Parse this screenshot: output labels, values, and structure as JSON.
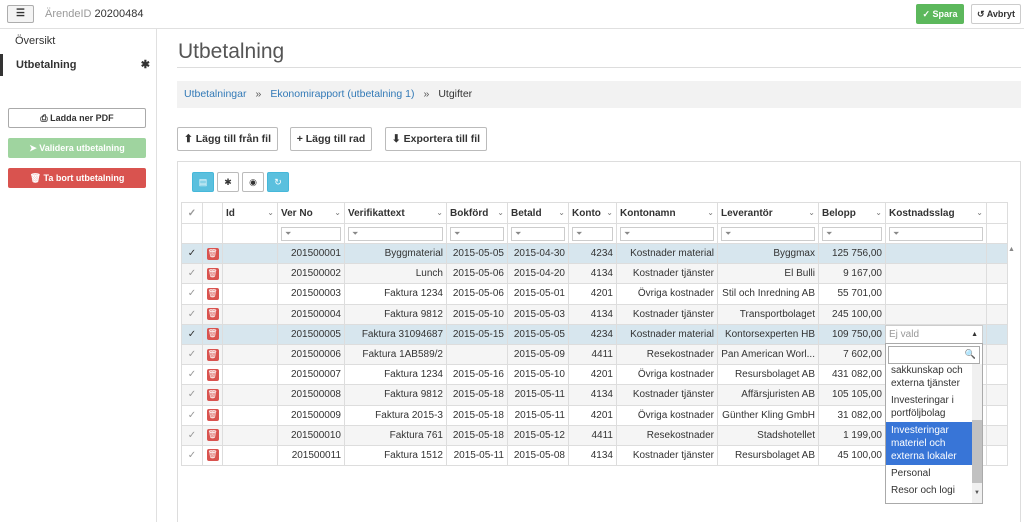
{
  "topbar": {
    "menu_icon": "list-collapse-icon",
    "case_label": "ÄrendeID",
    "case_id": "20200484",
    "save_label": "Spara",
    "cancel_label": "Avbryt"
  },
  "sidebar": {
    "items": [
      {
        "label": "Översikt"
      },
      {
        "label": "Utbetalning",
        "marker": "✱"
      }
    ],
    "download_pdf": "Ladda ner PDF",
    "validate": "Validera utbetalning",
    "delete": "Ta bort utbetalning"
  },
  "page": {
    "title": "Utbetalning",
    "breadcrumb": [
      "Utbetalningar",
      "Ekonomirapport (utbetalning 1)",
      "Utgifter"
    ]
  },
  "toolbar": {
    "add_from_file": "Lägg till från fil",
    "add_row": "Lägg till rad",
    "export": "Exportera till fil"
  },
  "grid": {
    "columns": [
      "Id",
      "Ver No",
      "Verifikattext",
      "Bokförd",
      "Betald",
      "Konto",
      "Kontonamn",
      "Leverantör",
      "Belopp",
      "Kostnadsslag"
    ],
    "rows": [
      {
        "id": "",
        "ver_no": "201500001",
        "text": "Byggmaterial",
        "bokford": "2015-05-05",
        "betald": "2015-04-30",
        "konto": "4234",
        "kontonamn": "Kostnader material",
        "leverantor": "Byggmax",
        "belopp": "125 756,00",
        "kostnadsslag": "",
        "checked": true
      },
      {
        "id": "",
        "ver_no": "201500002",
        "text": "Lunch",
        "bokford": "2015-05-06",
        "betald": "2015-04-20",
        "konto": "4134",
        "kontonamn": "Kostnader tjänster",
        "leverantor": "El Bulli",
        "belopp": "9 167,00",
        "kostnadsslag": "",
        "checked": false
      },
      {
        "id": "",
        "ver_no": "201500003",
        "text": "Faktura 1234",
        "bokford": "2015-05-06",
        "betald": "2015-05-01",
        "konto": "4201",
        "kontonamn": "Övriga kostnader",
        "leverantor": "Stil och Inredning AB",
        "belopp": "55 701,00",
        "kostnadsslag": "",
        "checked": false
      },
      {
        "id": "",
        "ver_no": "201500004",
        "text": "Faktura 9812",
        "bokford": "2015-05-10",
        "betald": "2015-05-03",
        "konto": "4134",
        "kontonamn": "Kostnader tjänster",
        "leverantor": "Transportbolaget",
        "belopp": "245 100,00",
        "kostnadsslag": "",
        "checked": false
      },
      {
        "id": "",
        "ver_no": "201500005",
        "text": "Faktura 31094687",
        "bokford": "2015-05-15",
        "betald": "2015-05-05",
        "konto": "4234",
        "kontonamn": "Kostnader material",
        "leverantor": "Kontorsexperten HB",
        "belopp": "109 750,00",
        "kostnadsslag": "",
        "checked": true
      },
      {
        "id": "",
        "ver_no": "201500006",
        "text": "Faktura 1AB589/2",
        "bokford": "",
        "betald": "2015-05-09",
        "konto": "4411",
        "kontonamn": "Resekostnader",
        "leverantor": "Pan American Worl...",
        "belopp": "7 602,00",
        "kostnadsslag": "",
        "checked": false
      },
      {
        "id": "",
        "ver_no": "201500007",
        "text": "Faktura 1234",
        "bokford": "2015-05-16",
        "betald": "2015-05-10",
        "konto": "4201",
        "kontonamn": "Övriga kostnader",
        "leverantor": "Resursbolaget AB",
        "belopp": "431 082,00",
        "kostnadsslag": "",
        "checked": false
      },
      {
        "id": "",
        "ver_no": "201500008",
        "text": "Faktura 9812",
        "bokford": "2015-05-18",
        "betald": "2015-05-11",
        "konto": "4134",
        "kontonamn": "Kostnader tjänster",
        "leverantor": "Affärsjuristen AB",
        "belopp": "105 105,00",
        "kostnadsslag": "",
        "checked": false
      },
      {
        "id": "",
        "ver_no": "201500009",
        "text": "Faktura 2015-3",
        "bokford": "2015-05-18",
        "betald": "2015-05-11",
        "konto": "4201",
        "kontonamn": "Övriga kostnader",
        "leverantor": "Günther Kling GmbH",
        "belopp": "31 082,00",
        "kostnadsslag": "",
        "checked": false
      },
      {
        "id": "",
        "ver_no": "201500010",
        "text": "Faktura 761",
        "bokford": "2015-05-18",
        "betald": "2015-05-12",
        "konto": "4411",
        "kontonamn": "Resekostnader",
        "leverantor": "Stadshotellet",
        "belopp": "1 199,00",
        "kostnadsslag": "",
        "checked": false
      },
      {
        "id": "",
        "ver_no": "201500011",
        "text": "Faktura 1512",
        "bokford": "2015-05-11",
        "betald": "2015-05-08",
        "konto": "4134",
        "kontonamn": "Kostnader tjänster",
        "leverantor": "Resursbolaget AB",
        "belopp": "45 100,00",
        "kostnadsslag": "",
        "checked": false
      }
    ]
  },
  "dropdown": {
    "selected": "Ej vald",
    "options": [
      "sakkunskap och externa tjänster",
      "Investeringar i portföljbolag",
      "Investeringar materiel och externa lokaler",
      "Personal",
      "Resor och logi"
    ],
    "highlighted_index": 2
  },
  "colors": {
    "selected_row": "#d7e6ee",
    "accent": "#337ab7",
    "danger": "#d9534f",
    "success": "#5cb85c"
  }
}
